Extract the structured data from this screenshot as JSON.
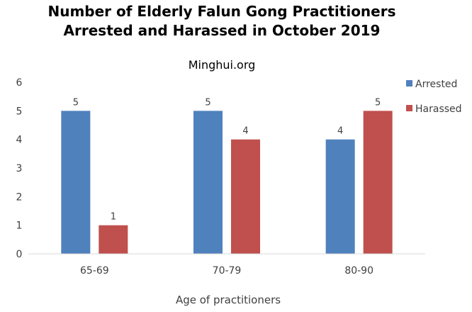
{
  "chart_data": {
    "type": "bar",
    "title": [
      "Number of Elderly Falun Gong Practitioners",
      "Arrested and Harassed in October 2019"
    ],
    "subtitle": "Minghui.org",
    "xlabel": "Age of practitioners",
    "ylabel": "",
    "categories": [
      "65-69",
      "70-79",
      "80-90"
    ],
    "series": [
      {
        "name": "Arrested",
        "values": [
          5,
          5,
          4
        ],
        "color": "#4f81bd"
      },
      {
        "name": "Harassed",
        "values": [
          1,
          4,
          5
        ],
        "color": "#c0504d"
      }
    ],
    "ylim": [
      0,
      6
    ],
    "yticks": [
      0,
      1,
      2,
      3,
      4,
      5,
      6
    ],
    "grid": false,
    "legend": "right"
  }
}
